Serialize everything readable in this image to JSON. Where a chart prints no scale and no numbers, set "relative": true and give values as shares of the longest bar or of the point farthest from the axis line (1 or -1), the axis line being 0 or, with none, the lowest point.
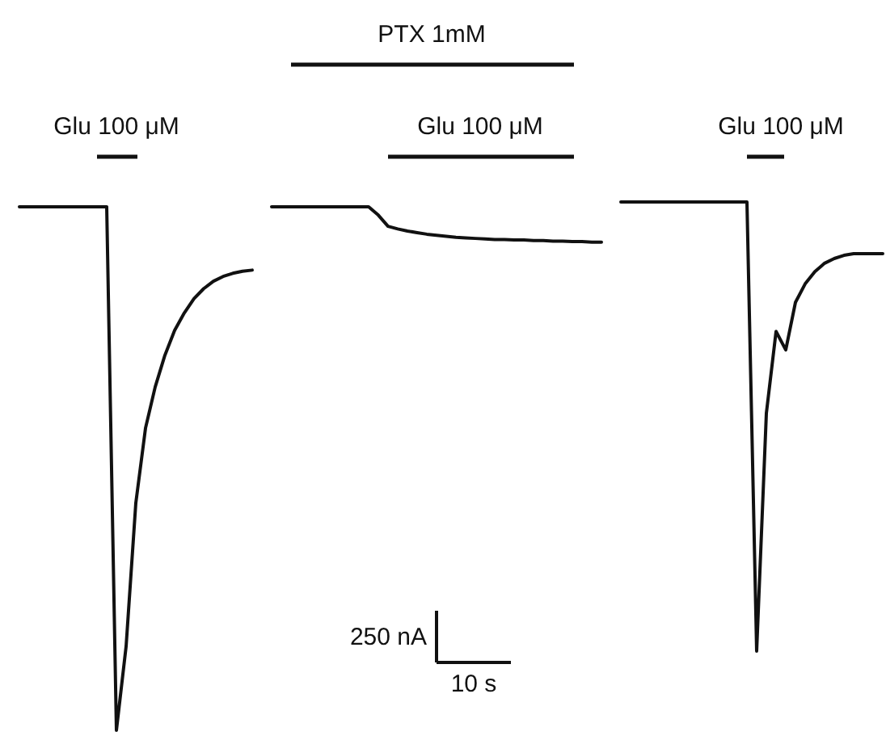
{
  "chart_data": {
    "type": "line",
    "relative": true,
    "categories": [
      null,
      null,
      null,
      null,
      null,
      null,
      null,
      null,
      null,
      null,
      null,
      null,
      null,
      null,
      null,
      null,
      null,
      null,
      null,
      null,
      null,
      null,
      null,
      null,
      null,
      null,
      null,
      null,
      null,
      null,
      null,
      null,
      null,
      null,
      null,
      null,
      null,
      null,
      null,
      null,
      null,
      null,
      null,
      null,
      null,
      null,
      null,
      null,
      null,
      null,
      null,
      null,
      null,
      null,
      null,
      null,
      null,
      null,
      null,
      null,
      null,
      null,
      null,
      null,
      null,
      null,
      null,
      null,
      null,
      null,
      null,
      null,
      null,
      null,
      null,
      null,
      null,
      null,
      null,
      null,
      null,
      null,
      null,
      null,
      null,
      null,
      null,
      null,
      null,
      null
    ],
    "series": [
      {
        "color": "#111111",
        "values": [
          0.991,
          0.991,
          0.991,
          0.991,
          0.991,
          0.991,
          0.991,
          0.991,
          0.991,
          0.991,
          0,
          0.159,
          0.43,
          0.572,
          0.65,
          0.71,
          0.757,
          0.79,
          0.817,
          0.836,
          0.85,
          0.859,
          0.865,
          0.869,
          0.871,
          null,
          null,
          null,
          null,
          null,
          null,
          null,
          null,
          null,
          null,
          null,
          null,
          null,
          null,
          null,
          null,
          null,
          null,
          null,
          null,
          null,
          null,
          null,
          null,
          null,
          null,
          null,
          null,
          null,
          null,
          null,
          null,
          null,
          null,
          null,
          null,
          null,
          null,
          null,
          null,
          null,
          null,
          null,
          null,
          null,
          null,
          null,
          null,
          null,
          null,
          null,
          null,
          null,
          null,
          null,
          null,
          null,
          null,
          null,
          null,
          null,
          null,
          null,
          null,
          null
        ]
      },
      {
        "color": "#111111",
        "values": [
          null,
          null,
          null,
          null,
          null,
          null,
          null,
          null,
          null,
          null,
          null,
          null,
          null,
          null,
          null,
          null,
          null,
          null,
          null,
          null,
          null,
          null,
          null,
          null,
          null,
          null,
          0.991,
          0.991,
          0.991,
          0.991,
          0.991,
          0.991,
          0.991,
          0.991,
          0.991,
          0.991,
          0.991,
          0.975,
          0.954,
          0.949,
          0.945,
          0.942,
          0.939,
          0.937,
          0.935,
          0.933,
          0.932,
          0.931,
          0.93,
          0.929,
          0.929,
          0.928,
          0.928,
          0.927,
          0.927,
          0.926,
          0.926,
          0.925,
          0.925,
          0.924,
          0.924,
          null,
          null,
          null,
          null,
          null,
          null,
          null,
          null,
          null,
          null,
          null,
          null,
          null,
          null,
          null,
          null,
          null,
          null,
          null,
          null,
          null,
          null,
          null,
          null,
          null,
          null,
          null,
          null,
          null
        ]
      },
      {
        "color": "#111111",
        "values": [
          null,
          null,
          null,
          null,
          null,
          null,
          null,
          null,
          null,
          null,
          null,
          null,
          null,
          null,
          null,
          null,
          null,
          null,
          null,
          null,
          null,
          null,
          null,
          null,
          null,
          null,
          null,
          null,
          null,
          null,
          null,
          null,
          null,
          null,
          null,
          null,
          null,
          null,
          null,
          null,
          null,
          null,
          null,
          null,
          null,
          null,
          null,
          null,
          null,
          null,
          null,
          null,
          null,
          null,
          null,
          null,
          null,
          null,
          null,
          null,
          null,
          null,
          1,
          1,
          1,
          1,
          1,
          1,
          1,
          1,
          1,
          1,
          1,
          1,
          1,
          1,
          0.15,
          0.6,
          0.755,
          0.72,
          0.81,
          0.845,
          0.868,
          0.884,
          0.893,
          0.899,
          0.902,
          0.902,
          0.902,
          0.902
        ]
      }
    ],
    "annotations": [
      "Glu 100 μM",
      "PTX 1mM",
      "Glu 100 μM",
      "Glu 100 μM",
      "250 nA",
      "10 s"
    ]
  }
}
